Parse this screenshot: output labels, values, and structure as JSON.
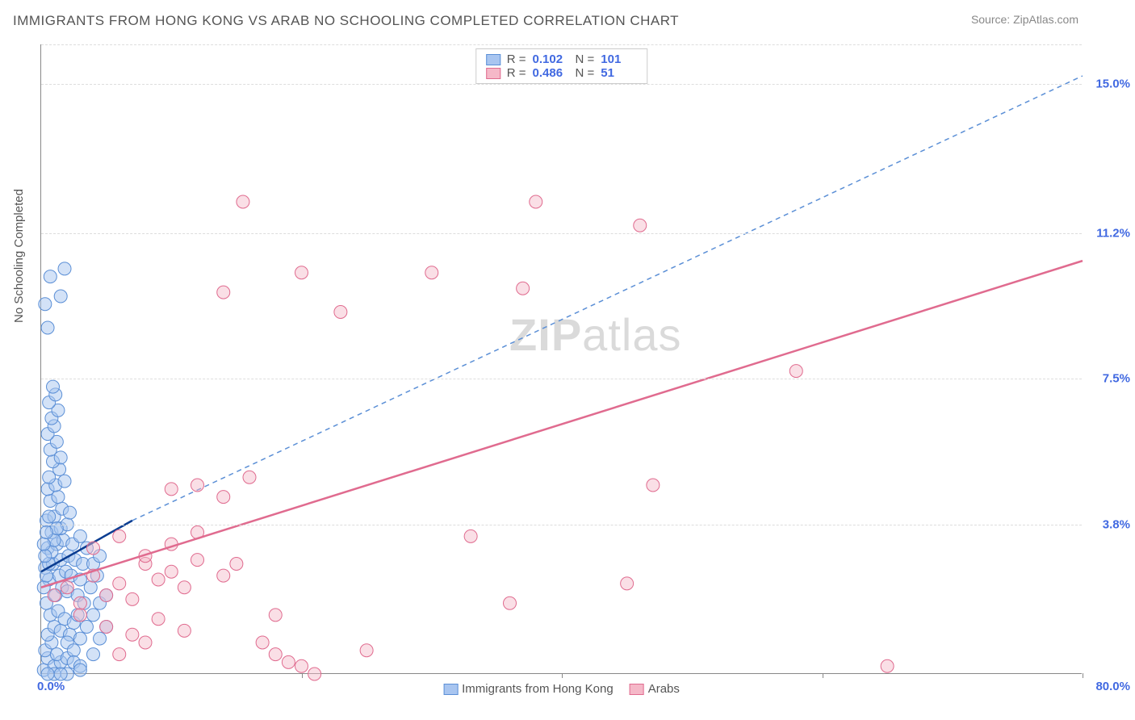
{
  "title": "IMMIGRANTS FROM HONG KONG VS ARAB NO SCHOOLING COMPLETED CORRELATION CHART",
  "source": "Source: ZipAtlas.com",
  "ylabel": "No Schooling Completed",
  "watermark_zip": "ZIP",
  "watermark_atlas": "atlas",
  "chart": {
    "type": "scatter-correlation",
    "background_color": "#ffffff",
    "grid_color": "#dddddd",
    "axis_color": "#888888",
    "xlim": [
      0,
      80
    ],
    "ylim": [
      0,
      16
    ],
    "xlabel_min": "0.0%",
    "xlabel_max": "80.0%",
    "y_gridlines": [
      {
        "value": 3.8,
        "label": "3.8%"
      },
      {
        "value": 7.5,
        "label": "7.5%"
      },
      {
        "value": 11.2,
        "label": "11.2%"
      },
      {
        "value": 15.0,
        "label": "15.0%"
      }
    ],
    "x_ticks": [
      20,
      40,
      60,
      80
    ],
    "marker_radius": 8,
    "marker_stroke_width": 1,
    "series": [
      {
        "name": "Immigrants from Hong Kong",
        "color_fill": "#a8c5f0",
        "color_stroke": "#5b8fd6",
        "fill_opacity": 0.5,
        "R": "0.102",
        "N": "101",
        "trend": {
          "x1": 0,
          "y1": 2.6,
          "x2": 7,
          "y2": 3.9,
          "color": "#0b3d91",
          "dash": "none",
          "width": 2.5
        },
        "trend_ext": {
          "x1": 7,
          "y1": 3.9,
          "x2": 80,
          "y2": 15.2,
          "color": "#5b8fd6",
          "dash": "6,5",
          "width": 1.5
        },
        "points": [
          [
            0.2,
            0.1
          ],
          [
            0.5,
            0.4
          ],
          [
            1.0,
            0.2
          ],
          [
            1.5,
            0.3
          ],
          [
            0.3,
            0.6
          ],
          [
            0.8,
            0.8
          ],
          [
            1.2,
            0.5
          ],
          [
            2.0,
            0.4
          ],
          [
            0.5,
            1.0
          ],
          [
            1.0,
            1.2
          ],
          [
            1.5,
            1.1
          ],
          [
            2.2,
            1.0
          ],
          [
            0.7,
            1.5
          ],
          [
            1.3,
            1.6
          ],
          [
            1.8,
            1.4
          ],
          [
            2.5,
            1.3
          ],
          [
            0.4,
            1.8
          ],
          [
            1.1,
            2.0
          ],
          [
            1.6,
            2.2
          ],
          [
            2.0,
            2.1
          ],
          [
            2.8,
            2.0
          ],
          [
            0.6,
            2.4
          ],
          [
            1.4,
            2.5
          ],
          [
            1.9,
            2.6
          ],
          [
            2.3,
            2.5
          ],
          [
            3.0,
            2.4
          ],
          [
            0.3,
            2.7
          ],
          [
            0.9,
            2.8
          ],
          [
            1.5,
            2.9
          ],
          [
            2.1,
            3.0
          ],
          [
            2.6,
            2.9
          ],
          [
            3.2,
            2.8
          ],
          [
            0.5,
            3.2
          ],
          [
            1.2,
            3.3
          ],
          [
            1.7,
            3.4
          ],
          [
            2.4,
            3.3
          ],
          [
            0.8,
            3.6
          ],
          [
            1.5,
            3.7
          ],
          [
            2.0,
            3.8
          ],
          [
            0.4,
            3.9
          ],
          [
            1.0,
            4.0
          ],
          [
            1.6,
            4.2
          ],
          [
            2.2,
            4.1
          ],
          [
            0.7,
            4.4
          ],
          [
            1.3,
            4.5
          ],
          [
            0.5,
            4.7
          ],
          [
            1.1,
            4.8
          ],
          [
            1.8,
            4.9
          ],
          [
            0.6,
            5.0
          ],
          [
            1.4,
            5.2
          ],
          [
            0.9,
            5.4
          ],
          [
            1.5,
            5.5
          ],
          [
            0.7,
            5.7
          ],
          [
            1.2,
            5.9
          ],
          [
            0.5,
            6.1
          ],
          [
            1.0,
            6.3
          ],
          [
            0.8,
            6.5
          ],
          [
            1.3,
            6.7
          ],
          [
            0.6,
            6.9
          ],
          [
            1.1,
            7.1
          ],
          [
            0.9,
            7.3
          ],
          [
            0.5,
            8.8
          ],
          [
            0.3,
            9.4
          ],
          [
            1.5,
            9.6
          ],
          [
            0.7,
            10.1
          ],
          [
            1.8,
            10.3
          ],
          [
            2.0,
            0.8
          ],
          [
            2.5,
            0.6
          ],
          [
            3.0,
            0.9
          ],
          [
            3.5,
            1.2
          ],
          [
            4.0,
            1.5
          ],
          [
            4.5,
            1.8
          ],
          [
            5.0,
            2.0
          ],
          [
            3.0,
            3.5
          ],
          [
            3.5,
            3.2
          ],
          [
            4.0,
            2.8
          ],
          [
            4.5,
            3.0
          ],
          [
            2.8,
            1.5
          ],
          [
            3.3,
            1.8
          ],
          [
            3.8,
            2.2
          ],
          [
            4.3,
            2.5
          ],
          [
            2.5,
            0.3
          ],
          [
            3.0,
            0.2
          ],
          [
            1.0,
            0.0
          ],
          [
            2.0,
            0.0
          ],
          [
            3.0,
            0.1
          ],
          [
            0.5,
            0.0
          ],
          [
            1.5,
            0.0
          ],
          [
            0.2,
            2.2
          ],
          [
            0.4,
            2.5
          ],
          [
            0.6,
            2.8
          ],
          [
            0.8,
            3.1
          ],
          [
            1.0,
            3.4
          ],
          [
            1.2,
            3.7
          ],
          [
            0.3,
            3.0
          ],
          [
            0.2,
            3.3
          ],
          [
            0.4,
            3.6
          ],
          [
            0.6,
            4.0
          ],
          [
            4.0,
            0.5
          ],
          [
            4.5,
            0.9
          ],
          [
            5.0,
            1.2
          ]
        ]
      },
      {
        "name": "Arabs",
        "color_fill": "#f5b8c8",
        "color_stroke": "#e06b8f",
        "fill_opacity": 0.45,
        "R": "0.486",
        "N": "51",
        "trend": {
          "x1": 0,
          "y1": 2.2,
          "x2": 80,
          "y2": 10.5,
          "color": "#e06b8f",
          "dash": "none",
          "width": 2.5
        },
        "points": [
          [
            1.0,
            2.0
          ],
          [
            2.0,
            2.2
          ],
          [
            3.0,
            1.8
          ],
          [
            4.0,
            2.5
          ],
          [
            5.0,
            2.0
          ],
          [
            6.0,
            2.3
          ],
          [
            7.0,
            1.9
          ],
          [
            8.0,
            2.8
          ],
          [
            9.0,
            2.4
          ],
          [
            10.0,
            2.6
          ],
          [
            11.0,
            2.2
          ],
          [
            12.0,
            2.9
          ],
          [
            3.0,
            1.5
          ],
          [
            5.0,
            1.2
          ],
          [
            7.0,
            1.0
          ],
          [
            9.0,
            1.4
          ],
          [
            11.0,
            1.1
          ],
          [
            4.0,
            3.2
          ],
          [
            6.0,
            3.5
          ],
          [
            8.0,
            3.0
          ],
          [
            10.0,
            3.3
          ],
          [
            12.0,
            3.6
          ],
          [
            14.0,
            2.5
          ],
          [
            15.0,
            2.8
          ],
          [
            12.0,
            4.8
          ],
          [
            14.0,
            4.5
          ],
          [
            16.0,
            5.0
          ],
          [
            10.0,
            4.7
          ],
          [
            17.0,
            0.8
          ],
          [
            18.0,
            0.5
          ],
          [
            19.0,
            0.3
          ],
          [
            20.0,
            0.2
          ],
          [
            21.0,
            0.0
          ],
          [
            18.0,
            1.5
          ],
          [
            14.0,
            9.7
          ],
          [
            15.5,
            12.0
          ],
          [
            20.0,
            10.2
          ],
          [
            23.0,
            9.2
          ],
          [
            25.0,
            0.6
          ],
          [
            30.0,
            10.2
          ],
          [
            33.0,
            3.5
          ],
          [
            36.0,
            1.8
          ],
          [
            37.0,
            9.8
          ],
          [
            38.0,
            12.0
          ],
          [
            45.0,
            2.3
          ],
          [
            46.0,
            11.4
          ],
          [
            47.0,
            4.8
          ],
          [
            58.0,
            7.7
          ],
          [
            65.0,
            0.2
          ],
          [
            6.0,
            0.5
          ],
          [
            8.0,
            0.8
          ]
        ]
      }
    ]
  },
  "legend_bottom": [
    {
      "label": "Immigrants from Hong Kong",
      "fill": "#a8c5f0",
      "stroke": "#5b8fd6"
    },
    {
      "label": "Arabs",
      "fill": "#f5b8c8",
      "stroke": "#e06b8f"
    }
  ]
}
